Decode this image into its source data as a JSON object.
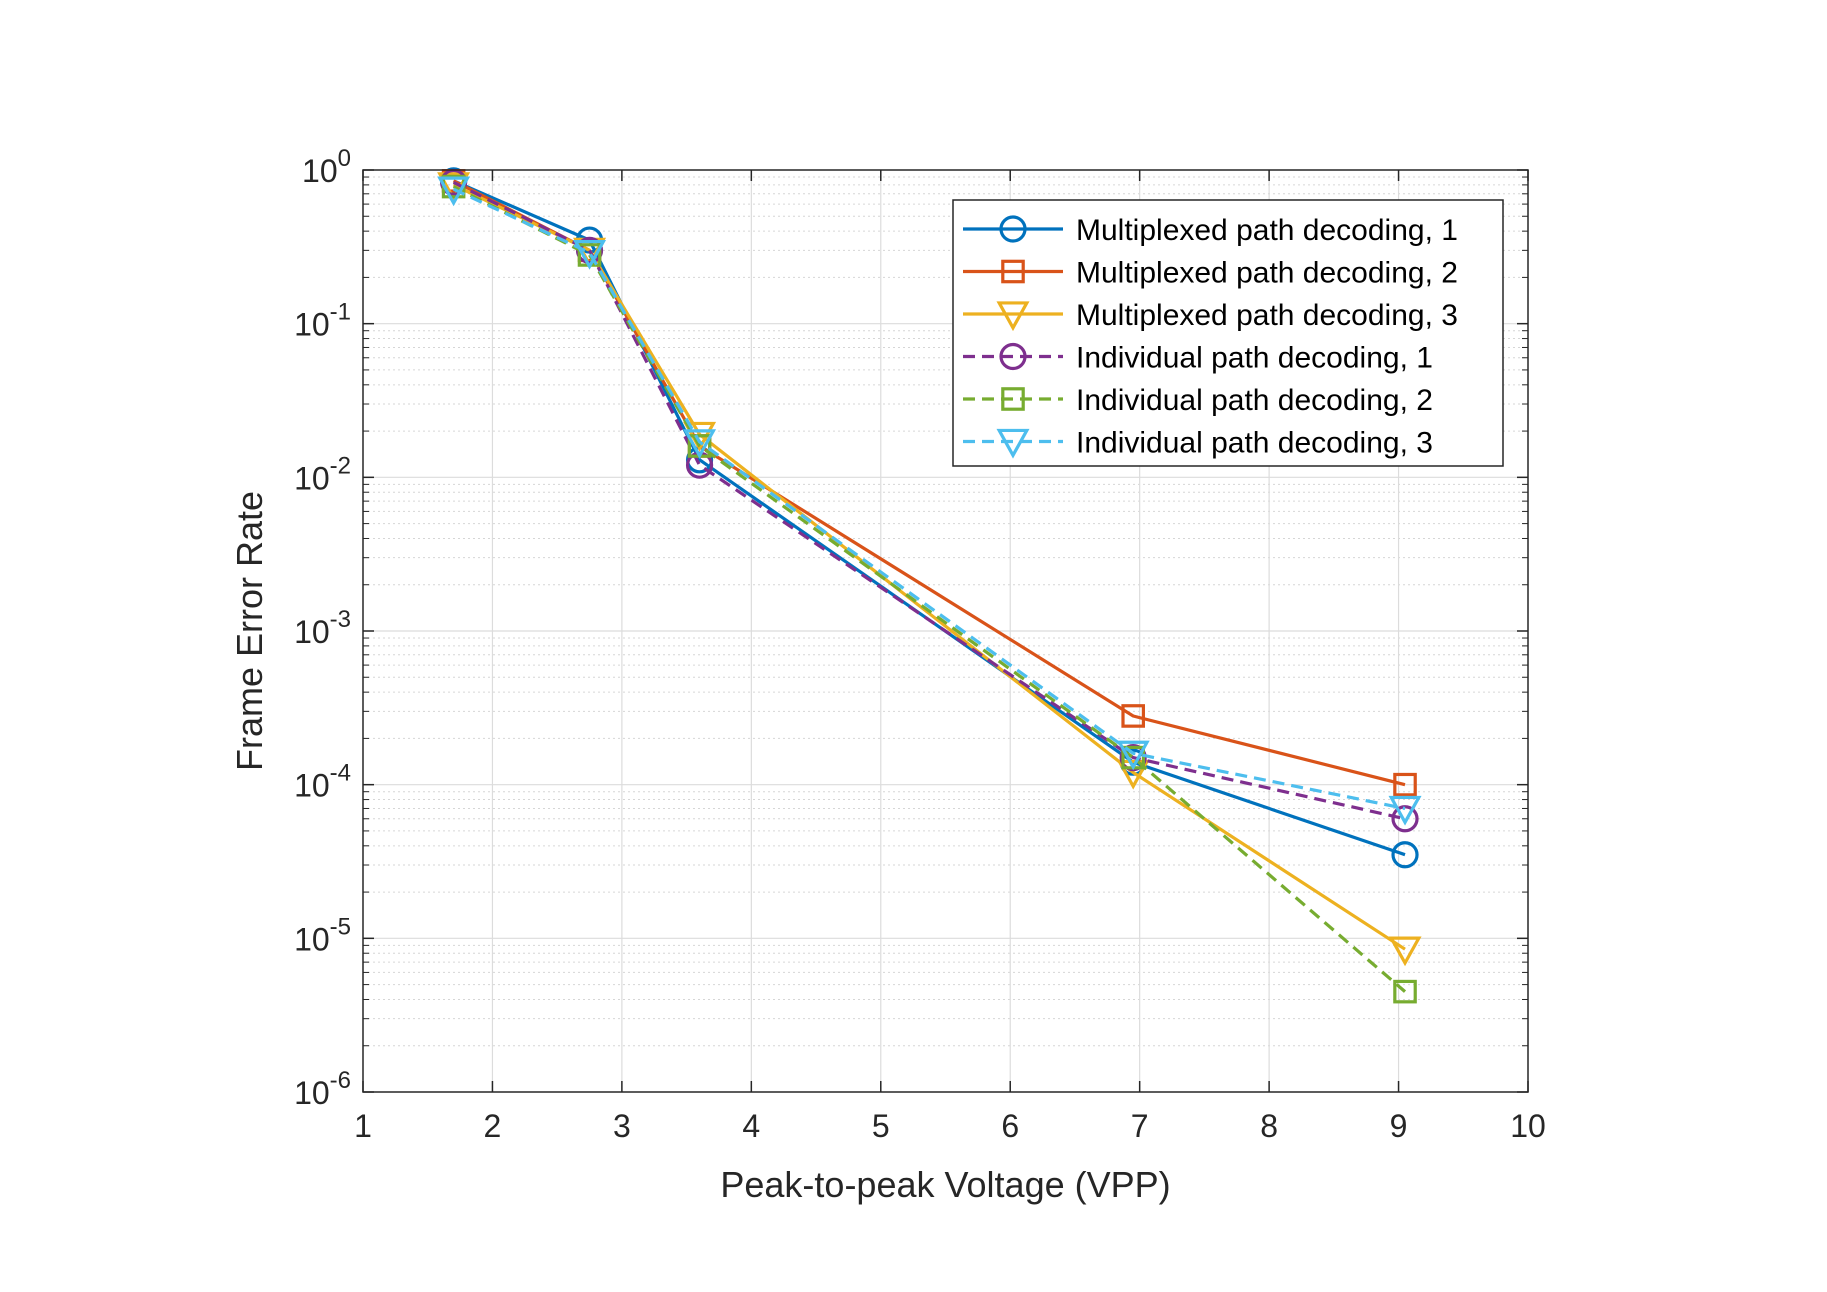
{
  "chart_data": {
    "type": "line",
    "xlabel": "Peak-to-peak Voltage (VPP)",
    "ylabel": "Frame Error Rate",
    "xlim": [
      1,
      10
    ],
    "ylim": [
      1e-06,
      1
    ],
    "yscale": "log",
    "grid": true,
    "minor_grid": true,
    "legend_position": "top-right",
    "x_ticks": [
      "1",
      "2",
      "3",
      "4",
      "5",
      "6",
      "7",
      "8",
      "9",
      "10"
    ],
    "y_ticks": [
      {
        "base": "10",
        "exp": "0"
      },
      {
        "base": "10",
        "exp": "-1"
      },
      {
        "base": "10",
        "exp": "-2"
      },
      {
        "base": "10",
        "exp": "-3"
      },
      {
        "base": "10",
        "exp": "-4"
      },
      {
        "base": "10",
        "exp": "-5"
      },
      {
        "base": "10",
        "exp": "-6"
      }
    ],
    "series": [
      {
        "name": "Multiplexed path decoding, 1",
        "color": "#0072BD",
        "marker": "circle",
        "dash": "solid",
        "x": [
          1.7,
          2.75,
          3.6,
          6.95,
          9.05
        ],
        "y": [
          0.85,
          0.35,
          0.013,
          0.00014,
          3.5e-05
        ]
      },
      {
        "name": "Multiplexed path decoding, 2",
        "color": "#D95319",
        "marker": "square",
        "dash": "solid",
        "x": [
          1.7,
          2.75,
          3.6,
          6.95,
          9.05
        ],
        "y": [
          0.85,
          0.3,
          0.016,
          0.00028,
          0.0001
        ]
      },
      {
        "name": "Multiplexed path decoding, 3",
        "color": "#EDB120",
        "marker": "triangle-down",
        "dash": "solid",
        "x": [
          1.7,
          2.75,
          3.6,
          6.95,
          9.05
        ],
        "y": [
          0.8,
          0.3,
          0.019,
          0.00012,
          8.5e-06
        ]
      },
      {
        "name": "Individual path decoding, 1",
        "color": "#7E2F8E",
        "marker": "circle",
        "dash": "dashed",
        "x": [
          1.7,
          2.75,
          3.6,
          6.95,
          9.05
        ],
        "y": [
          0.83,
          0.3,
          0.012,
          0.00015,
          6e-05
        ]
      },
      {
        "name": "Individual path decoding, 2",
        "color": "#77AC30",
        "marker": "square",
        "dash": "dashed",
        "x": [
          1.7,
          2.75,
          3.6,
          6.95,
          9.05
        ],
        "y": [
          0.78,
          0.28,
          0.016,
          0.00015,
          4.5e-06
        ]
      },
      {
        "name": "Individual path decoding, 3",
        "color": "#4DBEEE",
        "marker": "triangle-down",
        "dash": "dashed",
        "x": [
          1.7,
          2.75,
          3.6,
          6.95,
          9.05
        ],
        "y": [
          0.75,
          0.29,
          0.017,
          0.00016,
          7e-05
        ]
      }
    ]
  }
}
